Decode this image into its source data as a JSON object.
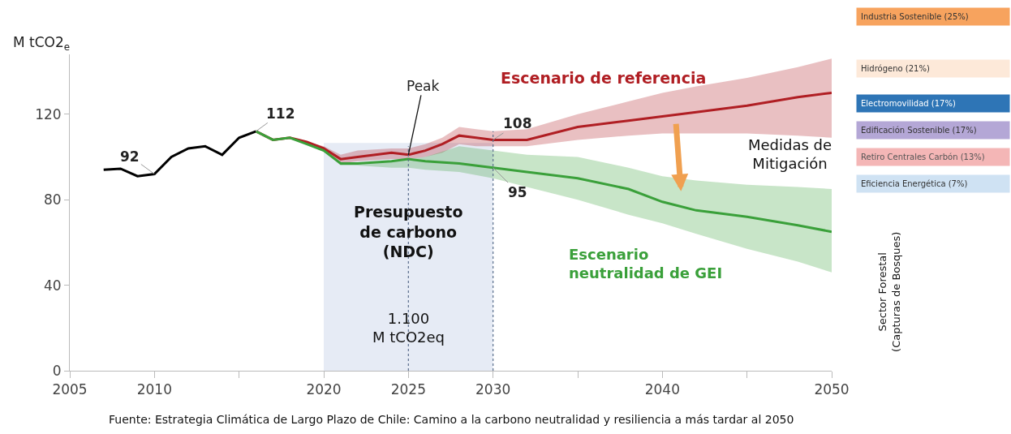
{
  "chart_data": {
    "type": "line",
    "ylabel": "M tCO2$_{e}$",
    "xlim": [
      2005,
      2050
    ],
    "ylim": [
      0,
      148
    ],
    "xticks": [
      2005,
      2010,
      {
        "value": 2015,
        "label": null
      },
      2020,
      2025,
      2030,
      {
        "value": 2035,
        "label": null
      },
      2040,
      {
        "value": 2045,
        "label": null
      },
      2050
    ],
    "yticks": [
      0,
      40,
      80,
      120
    ],
    "grid": false,
    "legend": false,
    "marker": "none",
    "line_style": "solid",
    "series": [
      {
        "color": "#000000",
        "x": [
          2007,
          2008,
          2009,
          2010,
          2011,
          2012,
          2013,
          2014,
          2015,
          2016
        ],
        "values": [
          94,
          94.5,
          91,
          92,
          100,
          104,
          105,
          101,
          109,
          112
        ]
      },
      {
        "name": "Escenario de referencia",
        "color": "#b01e23",
        "x": [
          2016,
          2017,
          2018,
          2019,
          2020,
          2021,
          2022,
          2024,
          2025,
          2026,
          2027,
          2028,
          2029,
          2030,
          2032,
          2035,
          2038,
          2040,
          2042,
          2045,
          2048,
          2050
        ],
        "values": [
          112,
          108,
          109,
          107,
          104,
          99,
          100,
          102,
          101,
          103,
          106,
          110,
          109,
          108,
          108,
          114,
          117,
          119,
          121,
          124,
          128,
          130
        ],
        "lower": [
          112,
          108,
          109,
          107,
          103,
          97,
          98,
          99,
          99,
          100,
          102,
          106,
          105,
          105,
          105,
          108,
          110,
          111,
          111,
          111,
          110,
          109
        ],
        "upper": [
          112,
          108,
          109,
          107,
          105,
          101,
          103,
          104,
          104,
          106,
          109,
          114,
          113,
          112,
          113,
          120,
          126,
          130,
          133,
          137,
          142,
          146
        ]
      },
      {
        "name": "Escenario neutralidad de GEI",
        "color": "#3aa03a",
        "x": [
          2016,
          2017,
          2018,
          2019,
          2020,
          2021,
          2022,
          2024,
          2025,
          2026,
          2028,
          2030,
          2032,
          2035,
          2038,
          2040,
          2042,
          2045,
          2048,
          2050
        ],
        "values": [
          112,
          108,
          109,
          106,
          103,
          97,
          97,
          98,
          99,
          98,
          97,
          95,
          93,
          90,
          85,
          79,
          75,
          72,
          68,
          65
        ],
        "lower": [
          112,
          108,
          109,
          106,
          103,
          96,
          96,
          95,
          95,
          94,
          93,
          90,
          86,
          80,
          73,
          69,
          64,
          57,
          51,
          46
        ],
        "upper": [
          112,
          108,
          109,
          106,
          103,
          97,
          97,
          98,
          99,
          100,
          105,
          103,
          101,
          100,
          95,
          91,
          89,
          87,
          86,
          85
        ]
      }
    ],
    "ref_lines": [
      {
        "axis": "x",
        "value": 2025,
        "line_style": "dotted",
        "color": "#5a6e8c"
      },
      {
        "axis": "x",
        "value": 2030,
        "line_style": "dotted",
        "color": "#5a6e8c"
      }
    ],
    "bands": [
      {
        "axis": "x",
        "from": 2020,
        "to": 2030,
        "label": "Presupuesto\nde carbono\n(NDC)",
        "color": "#e6ebf5"
      }
    ],
    "annotations": [
      {
        "text": "92",
        "x": 2010,
        "y": 92
      },
      {
        "text": "112",
        "x": 2016,
        "y": 112
      },
      {
        "text": "108",
        "x": 2030,
        "y": 108
      },
      {
        "text": "95",
        "x": 2030,
        "y": 95
      },
      {
        "text": "Peak",
        "x": 2025,
        "y": 101
      },
      "1.100\nM tCO2eq",
      "Medidas de\nMitigación",
      "Sector Forestal\n(Capturas de Bosques)",
      "Industria Sostenible (25%)",
      "Hidrógeno (21%)",
      "Electromovilidad (17%)",
      "Edificación Sostenible (17%)",
      "Retiro Centrales Carbón (13%)",
      "Eficiencia Energética (7%)",
      "Fuente: Estrategia Climática de Largo Plazo de Chile: Camino a la carbono neutralidad y resiliencia a más tardar al 2050"
    ]
  }
}
